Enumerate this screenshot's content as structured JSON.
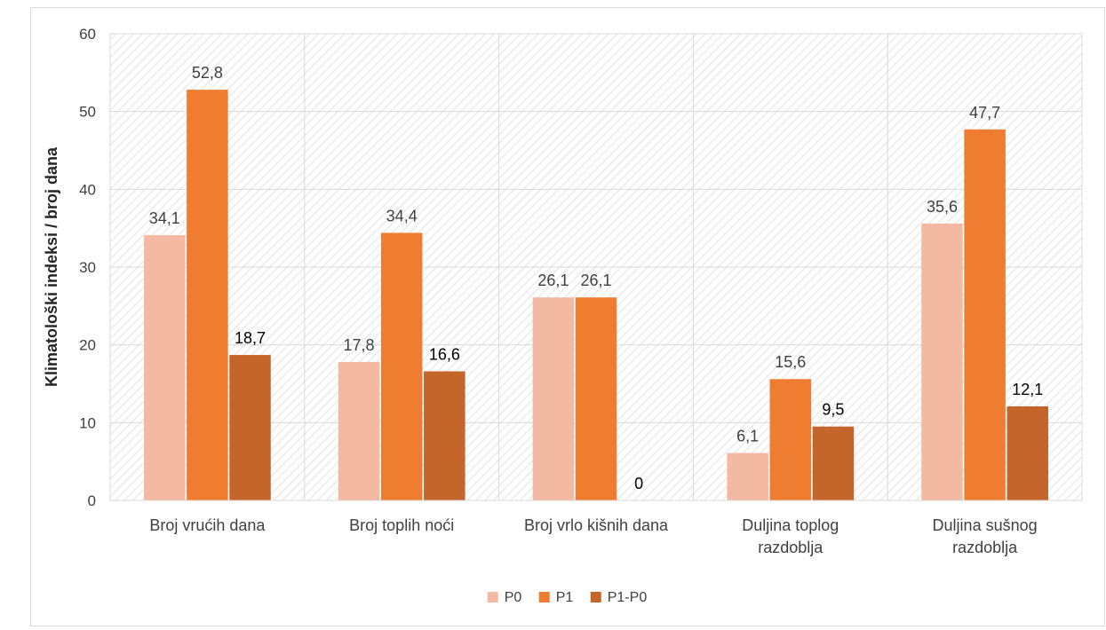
{
  "chart_data": {
    "type": "bar",
    "title": "",
    "xlabel": "",
    "ylabel": "Klimatološki indeksi / broj dana",
    "ylim": [
      0,
      60
    ],
    "yticks": [
      0,
      10,
      20,
      30,
      40,
      50,
      60
    ],
    "grid": true,
    "legend_position": "bottom",
    "categories": [
      [
        "Broj vrućih dana"
      ],
      [
        "Broj toplih noći"
      ],
      [
        "Broj vrlo kišnih dana"
      ],
      [
        "Duljina toplog",
        "razdoblja"
      ],
      [
        "Duljina sušnog",
        "razdoblja"
      ]
    ],
    "series": [
      {
        "name": "P0",
        "color": "#F4B9A3",
        "label_color": "#404040",
        "values": [
          34.1,
          17.8,
          26.1,
          6.1,
          35.6
        ],
        "labels": [
          "34,1",
          "17,8",
          "26,1",
          "6,1",
          "35,6"
        ]
      },
      {
        "name": "P1",
        "color": "#EE7D31",
        "label_color": "#404040",
        "values": [
          52.8,
          34.4,
          26.1,
          15.6,
          47.7
        ],
        "labels": [
          "52,8",
          "34,4",
          "26,1",
          "15,6",
          "47,7"
        ]
      },
      {
        "name": "P1-P0",
        "color": "#C4662C",
        "label_color": "#000000",
        "values": [
          18.7,
          16.6,
          0,
          9.5,
          12.1
        ],
        "labels": [
          "18,7",
          "16,6",
          "0",
          "9,5",
          "12,1"
        ]
      }
    ]
  }
}
